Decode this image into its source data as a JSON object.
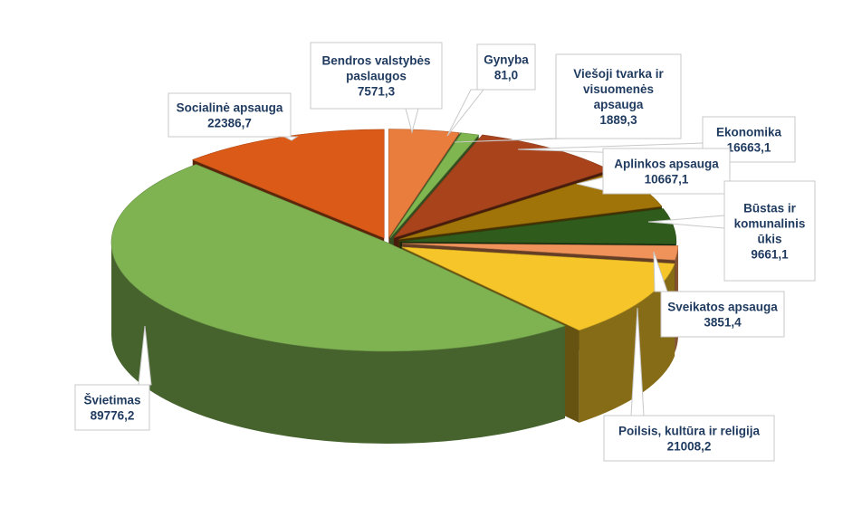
{
  "chart_data": {
    "type": "pie",
    "title": "",
    "three_d": true,
    "slices": [
      {
        "label": "Bendros valstybės paslaugos",
        "value": 7571.3,
        "display": "7571,3",
        "color": "#e87d3e"
      },
      {
        "label": "Gynyba",
        "value": 81.0,
        "display": "81,0",
        "color": "#4e8a3a"
      },
      {
        "label": "Viešoji tvarka ir visuomenės apsauga",
        "value": 1889.3,
        "display": "1889,3",
        "color": "#7fb64f"
      },
      {
        "label": "Ekonomika",
        "value": 16663.1,
        "display": "16663,1",
        "color": "#a8431c"
      },
      {
        "label": "Aplinkos apsauga",
        "value": 10667.1,
        "display": "10667,1",
        "color": "#a07408"
      },
      {
        "label": "Būstas ir komunalinis ūkis",
        "value": 9661.1,
        "display": "9661,1",
        "color": "#2f5b1c"
      },
      {
        "label": "Sveikatos apsauga",
        "value": 3851.4,
        "display": "3851,4",
        "color": "#f0935a"
      },
      {
        "label": "Poilsis, kultūra ir religija",
        "value": 21008.2,
        "display": "21008,2",
        "color": "#f5c529"
      },
      {
        "label": "Švietimas",
        "value": 89776.2,
        "display": "89776,2",
        "color": "#7fb352"
      },
      {
        "label": "Socialinė apsauga",
        "value": 22386.7,
        "display": "22386,7",
        "color": "#dc5a17"
      }
    ],
    "callouts": [
      {
        "lines": [
          "Bendros valstybės",
          "paslaugos",
          "7571,3"
        ]
      },
      {
        "lines": [
          "Gynyba",
          "81,0"
        ]
      },
      {
        "lines": [
          "Viešoji tvarka ir",
          "visuomenės",
          "apsauga",
          "1889,3"
        ]
      },
      {
        "lines": [
          "Ekonomika",
          "16663,1"
        ]
      },
      {
        "lines": [
          "Aplinkos apsauga",
          "10667,1"
        ]
      },
      {
        "lines": [
          "Būstas ir",
          "komunalinis",
          "ūkis",
          "9661,1"
        ]
      },
      {
        "lines": [
          "Sveikatos apsauga",
          "3851,4"
        ]
      },
      {
        "lines": [
          "Poilsis, kultūra ir religija",
          "21008,2"
        ]
      },
      {
        "lines": [
          "Švietimas",
          "89776,2"
        ]
      },
      {
        "lines": [
          "Socialinė apsauga",
          "22386,7"
        ]
      }
    ]
  }
}
